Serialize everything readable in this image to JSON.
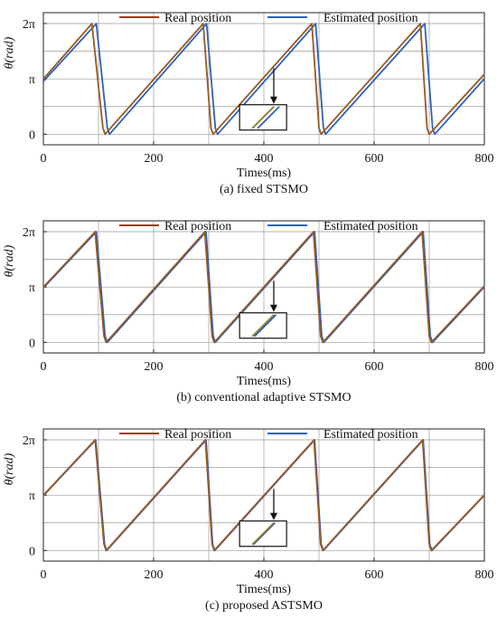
{
  "figure": {
    "panels": [
      {
        "caption": "(a) fixed STSMO"
      },
      {
        "caption": "(b) conventional adaptive STSMO"
      },
      {
        "caption": "(c) proposed ASTSMO"
      }
    ]
  },
  "chart_data": [
    {
      "type": "line",
      "caption": "(a) fixed STSMO",
      "xlabel": "Times(ms)",
      "ylabel": "θ(rad)",
      "xlim": [
        0,
        800
      ],
      "ylim": [
        -0.6,
        6.9
      ],
      "xticks": [
        0,
        200,
        400,
        600,
        800
      ],
      "yticks": [
        {
          "value": 0,
          "label": "0"
        },
        {
          "value": 3.1416,
          "label": "π"
        },
        {
          "value": 6.2832,
          "label": "2π"
        }
      ],
      "grid": true,
      "legend": "top",
      "series": [
        {
          "name": "Real position",
          "color": "#a33a1e",
          "x": [
            0,
            88,
            108,
            112,
            290,
            304,
            308,
            487,
            500,
            504,
            684,
            696,
            700,
            800
          ],
          "y": [
            3.14,
            6.28,
            0.35,
            0.0,
            6.28,
            0.35,
            0.0,
            6.28,
            0.35,
            0.0,
            6.28,
            0.35,
            0.0,
            3.4
          ]
        },
        {
          "name": "Estimated position",
          "color": "#2d62b8",
          "x": [
            0,
            96,
            116,
            120,
            296,
            312,
            316,
            494,
            508,
            512,
            692,
            706,
            710,
            800
          ],
          "y": [
            3.0,
            6.28,
            0.35,
            0.0,
            6.28,
            0.35,
            0.0,
            6.28,
            0.35,
            0.0,
            6.28,
            0.35,
            0.0,
            3.15
          ]
        }
      ],
      "annotation": {
        "arrow_from": [
          418,
          3.75
        ],
        "inset_at": [
          415,
          0.75
        ],
        "inset_lag": 10
      }
    },
    {
      "type": "line",
      "caption": "(b) conventional adaptive STSMO",
      "xlabel": "Times(ms)",
      "ylabel": "θ(rad)",
      "xlim": [
        0,
        800
      ],
      "ylim": [
        -0.6,
        6.9
      ],
      "xticks": [
        0,
        200,
        400,
        600,
        800
      ],
      "yticks": [
        {
          "value": 0,
          "label": "0"
        },
        {
          "value": 3.1416,
          "label": "π"
        },
        {
          "value": 6.2832,
          "label": "2π"
        }
      ],
      "grid": true,
      "legend": "top",
      "series": [
        {
          "name": "Real position",
          "color": "#a33a1e",
          "x": [
            0,
            94,
            110,
            114,
            293,
            306,
            310,
            490,
            503,
            507,
            687,
            700,
            704,
            800
          ],
          "y": [
            3.14,
            6.28,
            0.35,
            0.0,
            6.28,
            0.35,
            0.0,
            6.28,
            0.35,
            0.0,
            6.28,
            0.35,
            0.0,
            3.2
          ]
        },
        {
          "name": "Estimated position",
          "color": "#2d62b8",
          "x": [
            0,
            96,
            112,
            116,
            295,
            308,
            312,
            492,
            505,
            509,
            689,
            702,
            706,
            800
          ],
          "y": [
            3.1,
            6.28,
            0.35,
            0.0,
            6.28,
            0.35,
            0.0,
            6.28,
            0.35,
            0.0,
            6.28,
            0.35,
            0.0,
            3.15
          ]
        }
      ],
      "annotation": {
        "arrow_from": [
          418,
          3.5
        ],
        "inset_at": [
          415,
          0.75
        ],
        "inset_lag": 4
      }
    },
    {
      "type": "line",
      "caption": "(c) proposed ASTSMO",
      "xlabel": "Times(ms)",
      "ylabel": "θ(rad)",
      "xlim": [
        0,
        800
      ],
      "ylim": [
        -0.6,
        6.9
      ],
      "xticks": [
        0,
        200,
        400,
        600,
        800
      ],
      "yticks": [
        {
          "value": 0,
          "label": "0"
        },
        {
          "value": 3.1416,
          "label": "π"
        },
        {
          "value": 6.2832,
          "label": "2π"
        }
      ],
      "grid": true,
      "legend": "top",
      "series": [
        {
          "name": "Real position",
          "color": "#a33a1e",
          "x": [
            0,
            94,
            110,
            114,
            294,
            306,
            310,
            491,
            503,
            507,
            688,
            700,
            704,
            800
          ],
          "y": [
            3.14,
            6.28,
            0.35,
            0.0,
            6.28,
            0.35,
            0.0,
            6.28,
            0.35,
            0.0,
            6.28,
            0.35,
            0.0,
            3.15
          ]
        },
        {
          "name": "Estimated position",
          "color": "#2d62b8",
          "x": [
            0,
            95,
            111,
            115,
            295,
            307,
            311,
            492,
            504,
            508,
            689,
            701,
            705,
            800
          ],
          "y": [
            3.12,
            6.28,
            0.35,
            0.0,
            6.28,
            0.35,
            0.0,
            6.28,
            0.35,
            0.0,
            6.28,
            0.35,
            0.0,
            3.13
          ]
        }
      ],
      "annotation": {
        "arrow_from": [
          418,
          3.5
        ],
        "inset_at": [
          415,
          0.75
        ],
        "inset_lag": 2
      }
    }
  ]
}
